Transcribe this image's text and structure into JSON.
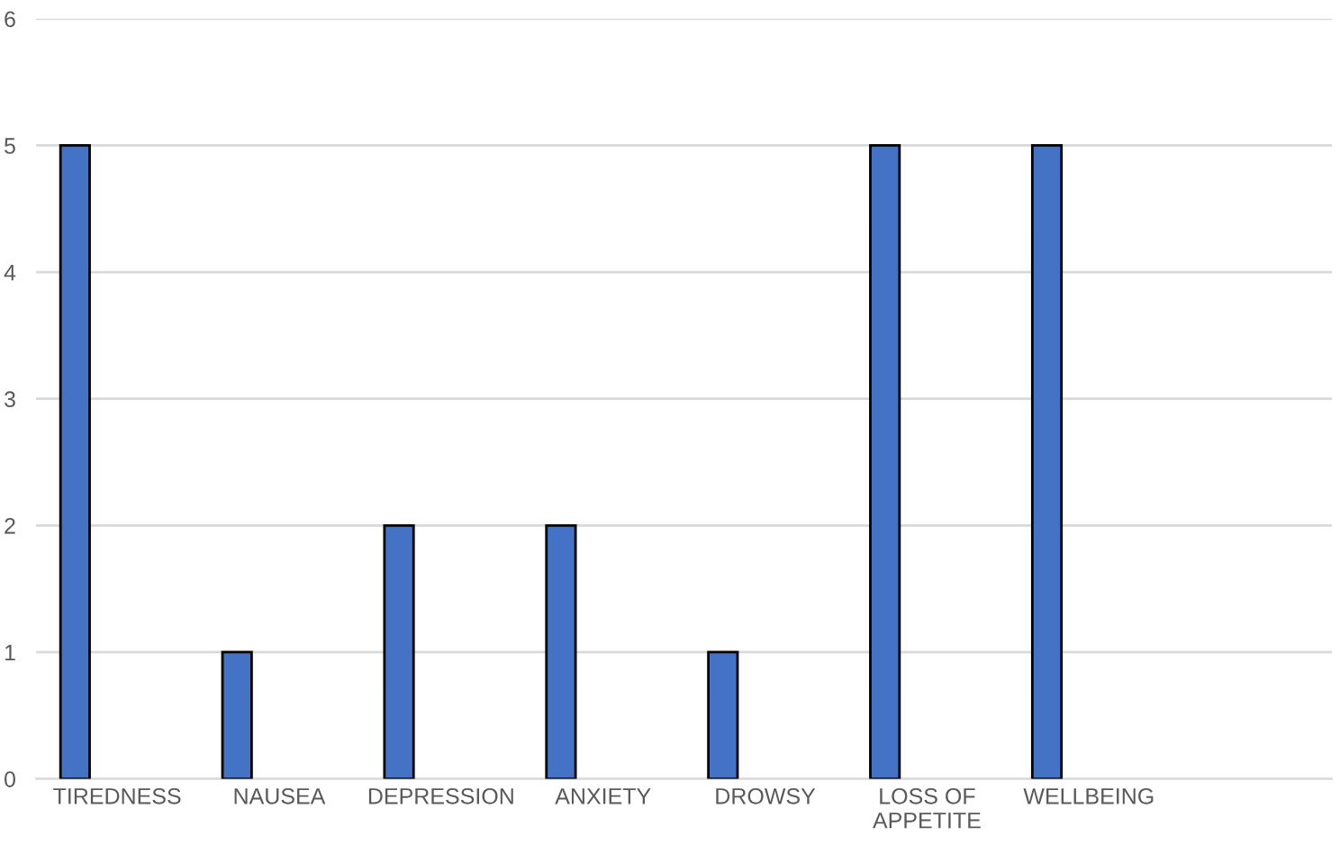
{
  "chart_data": {
    "type": "bar",
    "categories": [
      "TIREDNESS",
      "NAUSEA",
      "DEPRESSION",
      "ANXIETY",
      "DROWSY",
      "LOSS OF\nAPPETITE",
      "WELLBEING",
      null
    ],
    "values": [
      5,
      1,
      2,
      2,
      1,
      5,
      5,
      null
    ],
    "color": "#4472c4",
    "ylim": [
      0,
      6
    ],
    "yticks": [
      0,
      1,
      2,
      3,
      4,
      5,
      6
    ],
    "grid": "y"
  }
}
